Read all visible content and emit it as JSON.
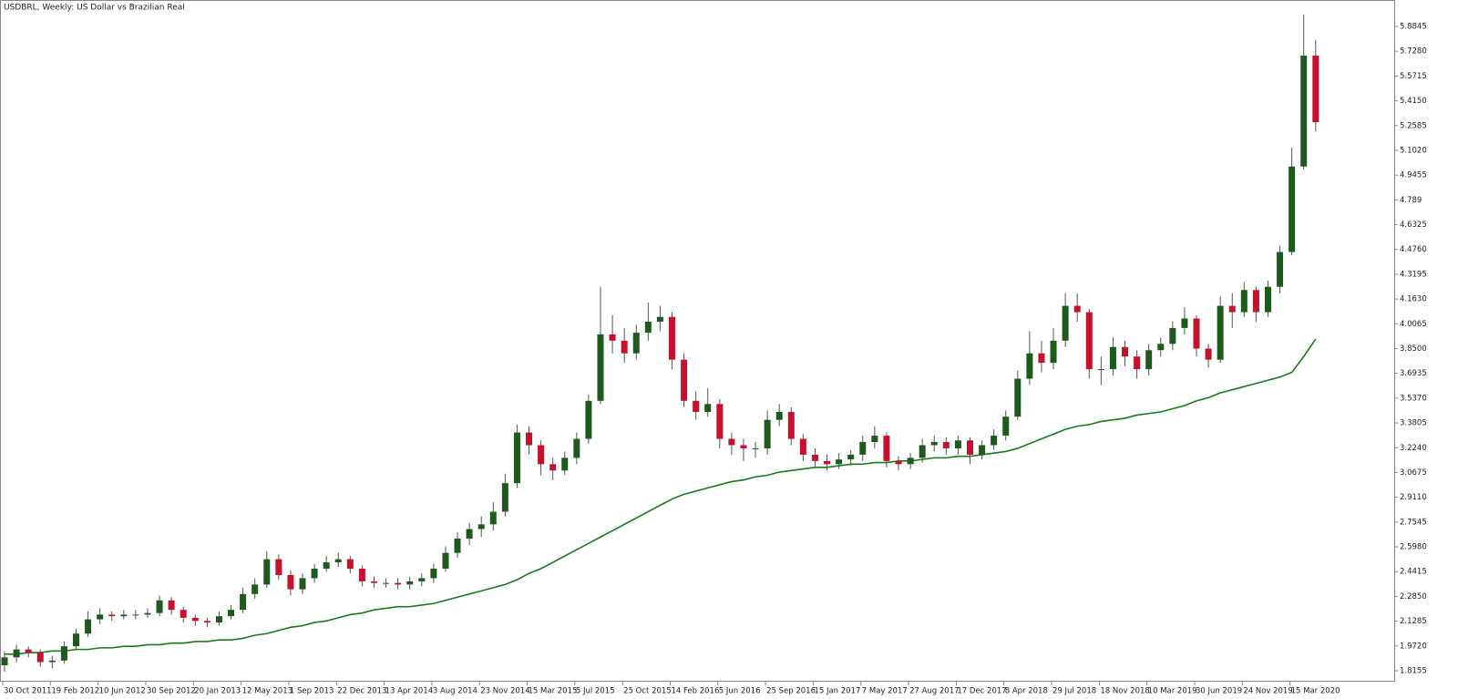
{
  "chart_data": {
    "type": "candlestick",
    "title": "USDBRL, Weekly:  US Dollar vs Brazilian Real",
    "categories": [
      "30 Oct 2011",
      null,
      null,
      null,
      "19 Feb 2012",
      null,
      null,
      null,
      "10 Jun 2012",
      null,
      null,
      null,
      "30 Sep 2012",
      null,
      null,
      null,
      "20 Jan 2013",
      null,
      null,
      null,
      "12 May 2013",
      null,
      null,
      null,
      "1 Sep 2013",
      null,
      null,
      null,
      "22 Dec 2013",
      null,
      null,
      null,
      "13 Apr 2014",
      null,
      null,
      null,
      "3 Aug 2014",
      null,
      null,
      null,
      "23 Nov 2014",
      null,
      null,
      null,
      "15 Mar 2015",
      null,
      null,
      null,
      "5 Jul 2015",
      null,
      null,
      null,
      "25 Oct 2015",
      null,
      null,
      null,
      "14 Feb 2016",
      null,
      null,
      null,
      "5 Jun 2016",
      null,
      null,
      null,
      "25 Sep 2016",
      null,
      null,
      null,
      "15 Jan 2017",
      null,
      null,
      null,
      "7 May 2017",
      null,
      null,
      null,
      "27 Aug 2017",
      null,
      null,
      null,
      "17 Dec 2017",
      null,
      null,
      null,
      "8 Apr 2018",
      null,
      null,
      null,
      "29 Jul 2018",
      null,
      null,
      null,
      "18 Nov 2018",
      null,
      null,
      null,
      "10 Mar 2019",
      null,
      null,
      null,
      "30 Jun 2019",
      null,
      null,
      null,
      "24 Nov 2019",
      null,
      null,
      null,
      "15 Mar 2020",
      null,
      null
    ],
    "open": [
      1.85,
      1.9,
      1.95,
      1.93,
      1.87,
      1.88,
      1.97,
      2.05,
      2.14,
      2.17,
      2.16,
      2.17,
      2.17,
      2.18,
      2.26,
      2.2,
      2.15,
      2.13,
      2.12,
      2.16,
      2.2,
      2.3,
      2.36,
      2.52,
      2.42,
      2.33,
      2.4,
      2.46,
      2.5,
      2.52,
      2.46,
      2.38,
      2.37,
      2.37,
      2.36,
      2.38,
      2.4,
      2.46,
      2.56,
      2.65,
      2.71,
      2.74,
      2.82,
      3.0,
      3.32,
      3.24,
      3.12,
      3.08,
      3.16,
      3.28,
      3.52,
      3.94,
      3.9,
      3.82,
      3.95,
      4.02,
      4.05,
      3.78,
      3.52,
      3.45,
      3.5,
      3.28,
      3.24,
      3.22,
      3.22,
      3.4,
      3.45,
      3.28,
      3.18,
      3.14,
      3.12,
      3.15,
      3.18,
      3.26,
      3.3,
      3.14,
      3.12,
      3.16,
      3.24,
      3.26,
      3.22,
      3.27,
      3.18,
      3.24,
      3.3,
      3.42,
      3.66,
      3.82,
      3.76,
      3.9,
      4.12,
      4.08,
      3.72,
      3.72,
      3.86,
      3.8,
      3.72,
      3.84,
      3.88,
      3.98,
      4.04,
      3.85,
      3.78,
      4.12,
      4.08,
      4.22,
      4.08,
      4.24,
      4.46,
      5.0,
      5.7
    ],
    "high": [
      1.94,
      1.98,
      1.97,
      1.95,
      1.91,
      2.0,
      2.08,
      2.19,
      2.21,
      2.19,
      2.2,
      2.2,
      2.21,
      2.29,
      2.28,
      2.22,
      2.17,
      2.15,
      2.19,
      2.23,
      2.34,
      2.4,
      2.57,
      2.55,
      2.45,
      2.43,
      2.49,
      2.54,
      2.56,
      2.54,
      2.48,
      2.41,
      2.4,
      2.4,
      2.41,
      2.43,
      2.49,
      2.6,
      2.69,
      2.75,
      2.79,
      2.88,
      3.06,
      3.37,
      3.36,
      3.27,
      3.16,
      3.2,
      3.32,
      3.56,
      4.24,
      4.06,
      3.98,
      4.0,
      4.14,
      4.12,
      4.08,
      3.82,
      3.58,
      3.6,
      3.53,
      3.32,
      3.28,
      3.26,
      3.46,
      3.5,
      3.48,
      3.31,
      3.22,
      3.18,
      3.19,
      3.21,
      3.3,
      3.36,
      3.32,
      3.17,
      3.19,
      3.28,
      3.3,
      3.29,
      3.3,
      3.29,
      3.27,
      3.34,
      3.46,
      3.71,
      3.96,
      3.9,
      3.98,
      4.2,
      4.2,
      4.1,
      3.8,
      3.92,
      3.9,
      3.84,
      3.88,
      3.92,
      4.02,
      4.11,
      4.06,
      3.88,
      4.18,
      4.2,
      4.27,
      4.24,
      4.28,
      4.5,
      5.12,
      5.96,
      5.8
    ],
    "low": [
      1.81,
      1.87,
      1.9,
      1.84,
      1.83,
      1.86,
      1.95,
      2.03,
      2.11,
      2.13,
      2.14,
      2.14,
      2.15,
      2.16,
      2.17,
      2.12,
      2.1,
      2.09,
      2.1,
      2.14,
      2.18,
      2.27,
      2.34,
      2.39,
      2.29,
      2.3,
      2.37,
      2.44,
      2.47,
      2.43,
      2.35,
      2.34,
      2.34,
      2.33,
      2.33,
      2.35,
      2.37,
      2.44,
      2.53,
      2.61,
      2.66,
      2.7,
      2.79,
      2.97,
      3.18,
      3.05,
      3.02,
      3.05,
      3.12,
      3.25,
      3.5,
      3.82,
      3.76,
      3.78,
      3.9,
      3.96,
      3.72,
      3.48,
      3.4,
      3.42,
      3.22,
      3.18,
      3.14,
      3.16,
      3.18,
      3.36,
      3.24,
      3.14,
      3.1,
      3.08,
      3.09,
      3.11,
      3.14,
      3.22,
      3.1,
      3.08,
      3.09,
      3.13,
      3.2,
      3.18,
      3.18,
      3.12,
      3.15,
      3.21,
      3.27,
      3.4,
      3.62,
      3.7,
      3.72,
      3.86,
      4.02,
      3.66,
      3.62,
      3.68,
      3.74,
      3.66,
      3.68,
      3.8,
      3.84,
      3.94,
      3.8,
      3.73,
      3.76,
      3.98,
      4.05,
      4.02,
      4.05,
      4.2,
      4.44,
      4.98,
      5.22
    ],
    "close": [
      1.9,
      1.95,
      1.93,
      1.87,
      1.88,
      1.97,
      2.05,
      2.14,
      2.17,
      2.16,
      2.17,
      2.17,
      2.18,
      2.26,
      2.2,
      2.15,
      2.13,
      2.12,
      2.16,
      2.2,
      2.3,
      2.36,
      2.52,
      2.42,
      2.33,
      2.4,
      2.46,
      2.5,
      2.52,
      2.46,
      2.38,
      2.37,
      2.37,
      2.36,
      2.38,
      2.4,
      2.46,
      2.56,
      2.65,
      2.71,
      2.74,
      2.82,
      3.0,
      3.32,
      3.24,
      3.12,
      3.08,
      3.16,
      3.28,
      3.52,
      3.94,
      3.9,
      3.82,
      3.95,
      4.02,
      4.05,
      3.78,
      3.52,
      3.45,
      3.5,
      3.28,
      3.24,
      3.22,
      3.22,
      3.4,
      3.45,
      3.28,
      3.18,
      3.14,
      3.12,
      3.15,
      3.18,
      3.26,
      3.3,
      3.14,
      3.12,
      3.16,
      3.24,
      3.26,
      3.22,
      3.27,
      3.18,
      3.24,
      3.3,
      3.42,
      3.66,
      3.82,
      3.76,
      3.9,
      4.12,
      4.08,
      3.72,
      3.72,
      3.86,
      3.8,
      3.72,
      3.84,
      3.88,
      3.98,
      4.04,
      3.85,
      3.78,
      4.12,
      4.08,
      4.22,
      4.08,
      4.24,
      4.46,
      5.0,
      5.7,
      5.28
    ],
    "up_color": "#1e5a1e",
    "down_color": "#c8102e",
    "wick_color": "#555555",
    "moving_average": {
      "color": "#1a7a1a",
      "values": [
        1.92,
        1.92,
        1.93,
        1.93,
        1.94,
        1.94,
        1.95,
        1.95,
        1.96,
        1.96,
        1.97,
        1.97,
        1.98,
        1.98,
        1.99,
        1.99,
        2.0,
        2.0,
        2.01,
        2.01,
        2.02,
        2.04,
        2.05,
        2.07,
        2.09,
        2.1,
        2.12,
        2.13,
        2.15,
        2.17,
        2.18,
        2.2,
        2.21,
        2.22,
        2.22,
        2.23,
        2.24,
        2.26,
        2.28,
        2.3,
        2.32,
        2.34,
        2.36,
        2.39,
        2.43,
        2.46,
        2.5,
        2.54,
        2.58,
        2.62,
        2.66,
        2.7,
        2.74,
        2.78,
        2.82,
        2.86,
        2.9,
        2.93,
        2.95,
        2.97,
        2.99,
        3.01,
        3.02,
        3.04,
        3.05,
        3.07,
        3.08,
        3.09,
        3.1,
        3.1,
        3.11,
        3.12,
        3.12,
        3.13,
        3.13,
        3.14,
        3.14,
        3.15,
        3.16,
        3.16,
        3.17,
        3.17,
        3.18,
        3.19,
        3.2,
        3.22,
        3.25,
        3.28,
        3.31,
        3.34,
        3.36,
        3.37,
        3.39,
        3.4,
        3.41,
        3.43,
        3.44,
        3.45,
        3.47,
        3.49,
        3.52,
        3.54,
        3.57,
        3.59,
        3.61,
        3.63,
        3.65,
        3.67,
        3.7,
        3.8,
        3.91
      ]
    },
    "ylim": [
      1.7464,
      6.0514
    ],
    "yticks": [
      1.8155,
      {
        "value": 1.972,
        "label": "1.9720"
      },
      2.1285,
      {
        "value": 2.285,
        "label": "2.2850"
      },
      2.4415,
      {
        "value": 2.598,
        "label": "2.5980"
      },
      2.7545,
      {
        "value": 2.911,
        "label": "2.9110"
      },
      3.0675,
      {
        "value": 3.224,
        "label": "3.2240"
      },
      3.3805,
      {
        "value": 3.537,
        "label": "3.5370"
      },
      3.6935,
      {
        "value": 3.85,
        "label": "3.8500"
      },
      4.0065,
      {
        "value": 4.163,
        "label": "4.1630"
      },
      4.3195,
      {
        "value": 4.476,
        "label": "4.4760"
      },
      4.6325,
      4.789,
      4.9455,
      {
        "value": 5.102,
        "label": "5.1020"
      },
      5.2585,
      {
        "value": 5.415,
        "label": "5.4150"
      },
      5.5715,
      {
        "value": 5.728,
        "label": "5.7280"
      },
      5.8845
    ]
  }
}
